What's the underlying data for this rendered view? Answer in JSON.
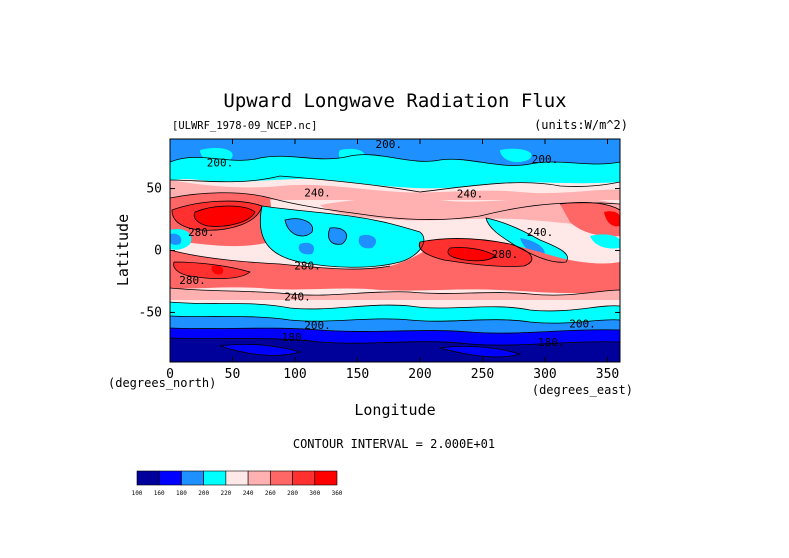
{
  "chart_data": {
    "type": "heatmap",
    "title": "Upward Longwave Radiation Flux",
    "dataset_label": "[ULWRF_1978-09_NCEP.nc]",
    "units_label": "(units:W/m^2)",
    "xlabel": "Longitude",
    "ylabel": "Latitude",
    "x_unit_label": "(degrees_east)",
    "y_unit_label": "(degrees_north)",
    "xlim": [
      0,
      360
    ],
    "ylim": [
      -90,
      90
    ],
    "x_ticks": [
      0,
      50,
      100,
      150,
      200,
      250,
      300,
      350
    ],
    "y_ticks": [
      50,
      0,
      -50
    ],
    "contour_interval_text": "CONTOUR INTERVAL = 2.000E+01",
    "contour_labels": [
      {
        "text": "200.",
        "lon": 175,
        "lat": 86
      },
      {
        "text": "200.",
        "lon": 40,
        "lat": 71
      },
      {
        "text": "200.",
        "lon": 300,
        "lat": 74
      },
      {
        "text": "240.",
        "lon": 118,
        "lat": 47
      },
      {
        "text": "240.",
        "lon": 240,
        "lat": 46
      },
      {
        "text": "240.",
        "lon": 296,
        "lat": 15
      },
      {
        "text": "280.",
        "lon": 25,
        "lat": 15
      },
      {
        "text": "280.",
        "lon": 268,
        "lat": -3
      },
      {
        "text": "280.",
        "lon": 110,
        "lat": -12
      },
      {
        "text": "280.",
        "lon": 18,
        "lat": -24
      },
      {
        "text": "240.",
        "lon": 102,
        "lat": -37
      },
      {
        "text": "200.",
        "lon": 118,
        "lat": -60
      },
      {
        "text": "200.",
        "lon": 330,
        "lat": -59
      },
      {
        "text": "180.",
        "lon": 100,
        "lat": -70
      },
      {
        "text": "180.",
        "lon": 305,
        "lat": -74
      }
    ],
    "colorbar": {
      "colors": [
        "#00009a",
        "#0000ff",
        "#1e90ff",
        "#00ffff",
        "#ffe8e8",
        "#ffb0b0",
        "#ff6666",
        "#ff3030",
        "#ff0000"
      ],
      "labels": [
        "100",
        "160",
        "180",
        "200",
        "220",
        "240",
        "260",
        "280",
        "300",
        "360"
      ]
    }
  }
}
